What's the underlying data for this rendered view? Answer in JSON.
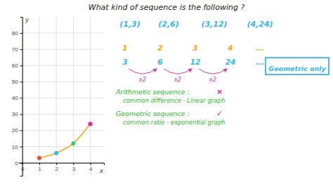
{
  "chart_data": {
    "type": "line",
    "title": "What kind of sequence is the following ?",
    "x": [
      1,
      2,
      3,
      4
    ],
    "values": [
      3,
      6,
      12,
      24
    ],
    "color": "#f5a623",
    "colors": [
      "#e74c3c",
      "#3ab5e6",
      "#2ecc71",
      "#e91e8c"
    ],
    "marker": "circle",
    "xlim": [
      -0.4,
      4.8
    ],
    "ylim": [
      -8,
      90
    ],
    "xticks": [
      0,
      1,
      2,
      3,
      4
    ],
    "yticks": [
      0,
      10,
      20,
      30,
      40,
      50,
      60,
      70,
      80
    ],
    "xlabel": "x",
    "ylabel": "y",
    "grid": true,
    "annotations": [
      {
        "text": "(1,3)",
        "color": "#3ab5e6"
      },
      {
        "text": "(2,6)",
        "color": "#3ab5e6"
      },
      {
        "text": "(3,12)",
        "color": "#3ab5e6"
      },
      {
        "text": "(4,24)",
        "color": "#3ab5e6"
      },
      {
        "text": "1",
        "color": "#f5a623"
      },
      {
        "text": "2",
        "color": "#f5a623"
      },
      {
        "text": "3",
        "color": "#f5a623"
      },
      {
        "text": "4",
        "color": "#f5a623"
      },
      {
        "text": "...",
        "color": "#f5a623"
      },
      {
        "text": "3",
        "color": "#3ab5e6"
      },
      {
        "text": "6",
        "color": "#3ab5e6"
      },
      {
        "text": "12",
        "color": "#3ab5e6"
      },
      {
        "text": "24",
        "color": "#3ab5e6"
      },
      {
        "text": "...",
        "color": "#3ab5e6"
      },
      {
        "text": "x2",
        "color": "#cc44aa"
      },
      {
        "text": "x2",
        "color": "#cc44aa"
      },
      {
        "text": "x2",
        "color": "#cc44aa"
      },
      {
        "text": "Geometric only",
        "color": "#3ab5e6"
      },
      {
        "text": "Arithmetic sequence :",
        "color": "#2db52d"
      },
      {
        "text": "×",
        "color": "#e91e8c"
      },
      {
        "text": "common difference - Linear graph",
        "color": "#2db52d"
      },
      {
        "text": "Geometric sequence :",
        "color": "#2db52d"
      },
      {
        "text": "✓",
        "color": "#e91e8c"
      },
      {
        "text": "common ratio - exponential graph",
        "color": "#2db52d"
      }
    ]
  }
}
